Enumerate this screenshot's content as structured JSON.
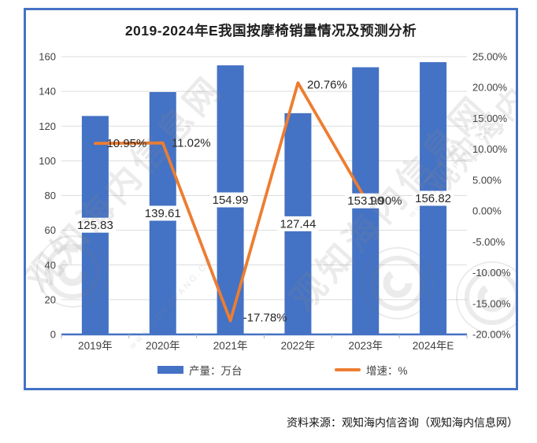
{
  "source": "资料来源：观知海内信咨询（观知海内信息网）",
  "legend": {
    "bars": "产量：万台",
    "line": "增速：%"
  },
  "watermark": {
    "text": "观知海内信息网",
    "small_text": "www.DONGFANG.CO"
  },
  "colors": {
    "bar": "#4472C4",
    "line": "#ED7D31",
    "frame": "#4472C4",
    "axis_line": "#4472C4",
    "grid": "#dcdcdc",
    "axis_text": "#404040",
    "label_text": "#262626"
  },
  "chart_data": {
    "type": "bar",
    "title": "2019-2024年E我国按摩椅销量情况及预测分析",
    "categories": [
      "2019年",
      "2020年",
      "2021年",
      "2022年",
      "2023年",
      "2024年E"
    ],
    "series": [
      {
        "name": "产量：万台",
        "type": "bar",
        "values": [
          125.83,
          139.61,
          154.99,
          127.44,
          153.9,
          156.82
        ],
        "labels": [
          "125.83",
          "139.61",
          "154.99",
          "127.44",
          "153.90",
          "156.82"
        ]
      },
      {
        "name": "增速：%",
        "type": "line",
        "values": [
          10.95,
          11.02,
          -17.78,
          20.76,
          1.9,
          null
        ],
        "labels": [
          "10.95%",
          "11.02%",
          "-17.78%",
          "20.76%",
          "1.90%",
          ""
        ],
        "label_offsets": [
          [
            40,
            0
          ],
          [
            36,
            0
          ],
          [
            44,
            -4
          ],
          [
            37,
            2
          ],
          [
            25,
            2
          ]
        ]
      }
    ],
    "left_axis": {
      "min": 0,
      "max": 160,
      "step": 20,
      "ticks": [
        "160",
        "140",
        "120",
        "100",
        "80",
        "60",
        "40",
        "20",
        "0"
      ]
    },
    "right_axis": {
      "min": -20,
      "max": 25,
      "step": 5,
      "ticks": [
        "25.00%",
        "20.00%",
        "15.00%",
        "10.00%",
        "5.00%",
        "0.00%",
        "-5.00%",
        "-10.00%",
        "-15.00%",
        "-20.00%"
      ]
    },
    "grid": true,
    "legend_position": "bottom"
  }
}
